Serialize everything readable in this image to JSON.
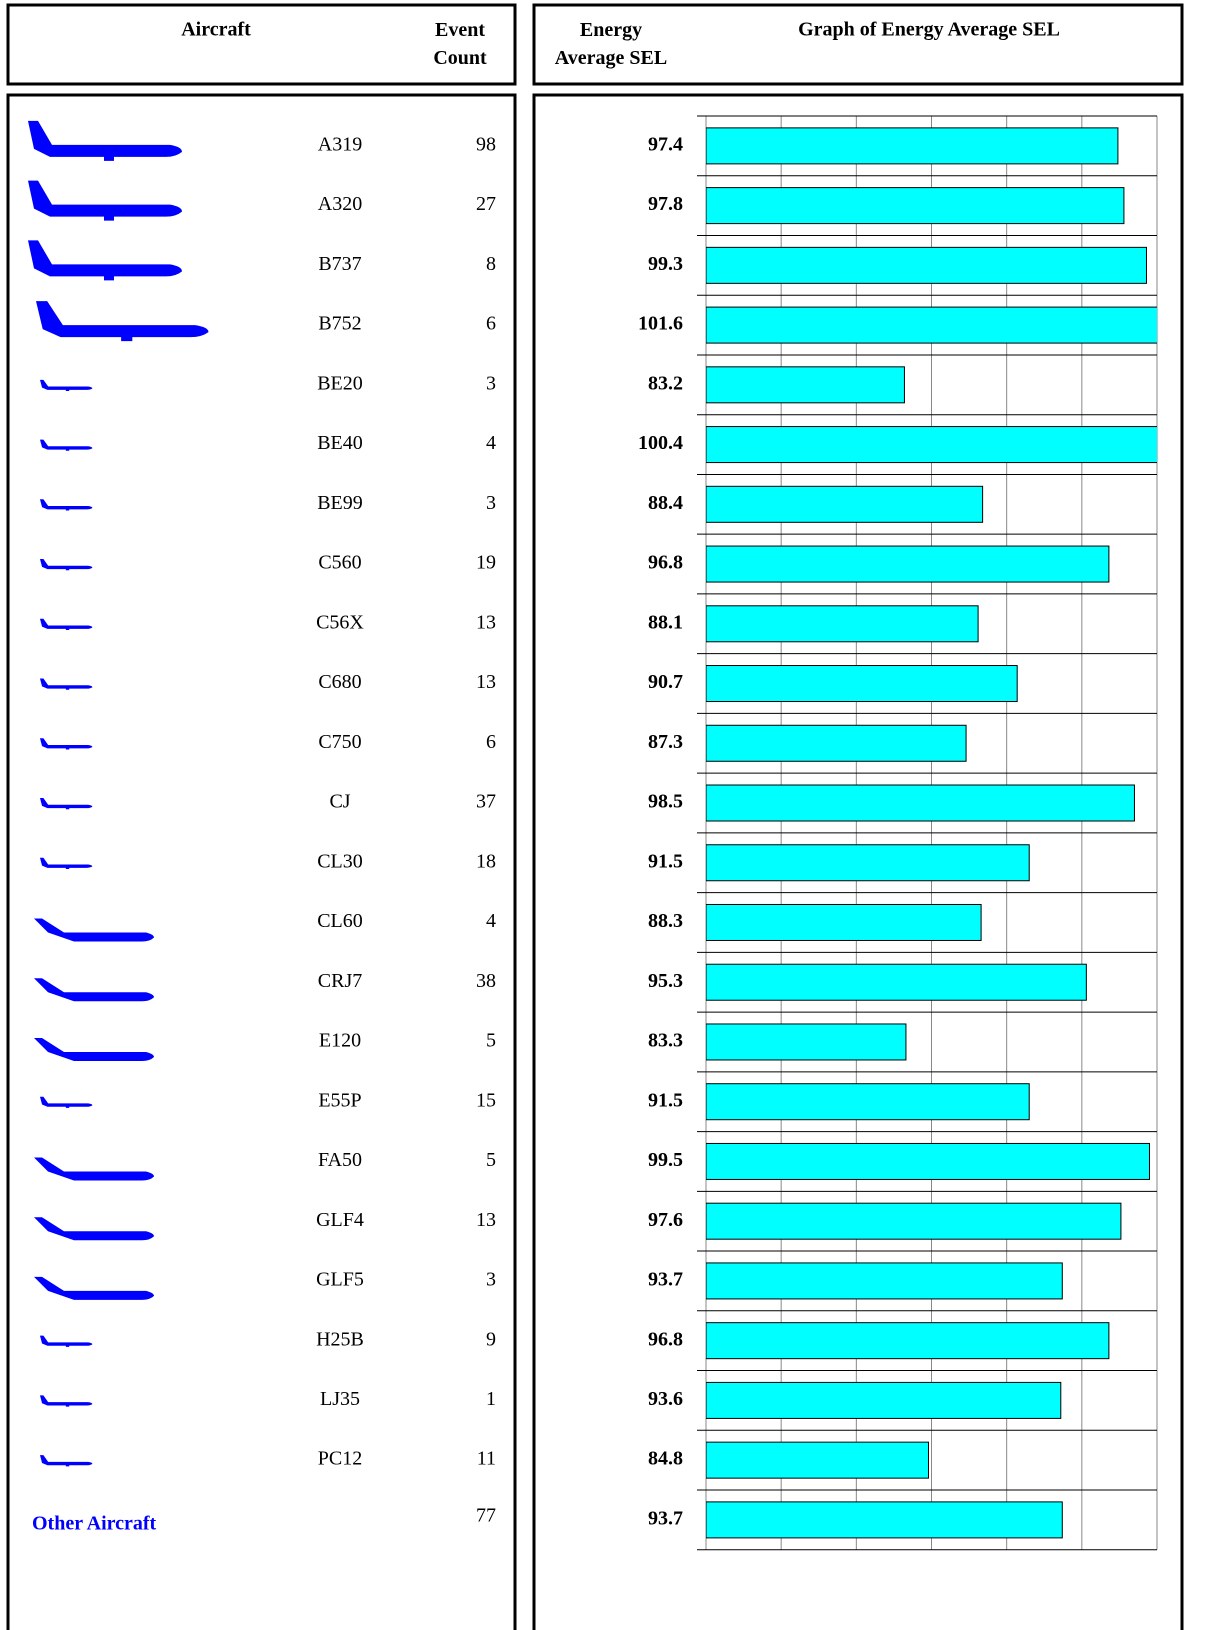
{
  "table": {
    "headers": {
      "aircraft": "Aircraft",
      "event_count": "Event Count",
      "sel": "Energy Average SEL"
    },
    "event_counts": [
      98,
      27,
      8,
      6,
      3,
      4,
      3,
      19,
      13,
      13,
      6,
      37,
      18,
      4,
      38,
      5,
      15,
      5,
      13,
      3,
      9,
      1,
      11,
      77
    ]
  },
  "chart_data": {
    "type": "bar",
    "orientation": "horizontal",
    "title": "Graph of Energy Average SEL",
    "categories": [
      "A319",
      "A320",
      "B737",
      "B752",
      "BE20",
      "BE40",
      "BE99",
      "C560",
      "C56X",
      "C680",
      "C750",
      "CJ",
      "CL30",
      "CL60",
      "CRJ7",
      "E120",
      "E55P",
      "FA50",
      "GLF4",
      "GLF5",
      "H25B",
      "LJ35",
      "PC12",
      "Other Aircraft"
    ],
    "values": [
      97.4,
      97.8,
      99.3,
      101.6,
      83.2,
      100.4,
      88.4,
      96.8,
      88.1,
      90.7,
      87.3,
      98.5,
      91.5,
      88.3,
      95.3,
      83.3,
      91.5,
      99.5,
      97.6,
      93.7,
      96.8,
      93.6,
      84.8,
      93.7
    ],
    "color": "#00ffff",
    "xlim": [
      70,
      100
    ],
    "xticks": [
      70,
      75,
      80,
      85,
      90,
      95,
      100
    ],
    "grid": true
  }
}
